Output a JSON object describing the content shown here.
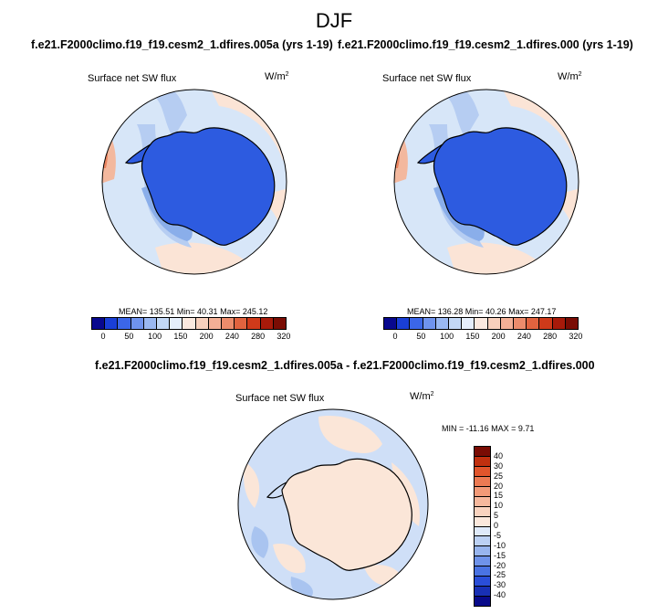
{
  "title": "DJF",
  "panel_left": {
    "run": "f.e21.F2000climo.f19_f19.cesm2_1.dfires.005a (yrs 1-19)",
    "field": "Surface net SW flux",
    "units_base": "W/m",
    "units_exp": "2",
    "stats": "MEAN= 135.51  Min=  40.31  Max= 245.12"
  },
  "panel_right": {
    "run": "f.e21.F2000climo.f19_f19.cesm2_1.dfires.000 (yrs 1-19)",
    "field": "Surface net SW flux",
    "units_base": "W/m",
    "units_exp": "2",
    "stats": "MEAN= 136.28  Min=  40.26  Max= 247.17"
  },
  "panel_diff": {
    "run": "f.e21.F2000climo.f19_f19.cesm2_1.dfires.005a - f.e21.F2000climo.f19_f19.cesm2_1.dfires.000",
    "field": "Surface net SW flux",
    "units_base": "W/m",
    "units_exp": "2",
    "stats": "MIN = -11.16  MAX =   9.71"
  },
  "colorbar_abs": {
    "labels": [
      "0",
      "50",
      "100",
      "150",
      "200",
      "240",
      "280",
      "320"
    ],
    "colors": [
      "#08088e",
      "#1a3fd6",
      "#3b66e8",
      "#6f93ee",
      "#9ab8f2",
      "#c3d8f6",
      "#e5eefb",
      "#fbe9df",
      "#f8d0bc",
      "#f3b096",
      "#ec8c6c",
      "#e1633f",
      "#cf3a1a",
      "#a81a0a",
      "#7a0c04"
    ]
  },
  "colorbar_diff": {
    "labels": [
      "40",
      "30",
      "25",
      "20",
      "15",
      "10",
      "5",
      "0",
      "-5",
      "-10",
      "-15",
      "-20",
      "-25",
      "-30",
      "-40"
    ],
    "colors": [
      "#7a0c04",
      "#c1300f",
      "#e1552c",
      "#ec7a53",
      "#f29a78",
      "#f6b89d",
      "#f9d3bf",
      "#fbe8dc",
      "#dfeafa",
      "#bcd1f4",
      "#98b5ee",
      "#6f93ea",
      "#4a73e3",
      "#2a4ed8",
      "#1830b5",
      "#080a8a"
    ]
  },
  "map_colors": {
    "ocean_light": "#d7e6f8",
    "ocean_mid": "#b6cdf2",
    "ocean_dark": "#8aaeea",
    "deep_blue": "#3f6fe0",
    "antarctica": "#2d5be0",
    "warm_light": "#fbe4d6",
    "warm_mid": "#f3b89e",
    "warm_dark": "#e8835f",
    "diff_pink": "#fbe6d8",
    "diff_blue": "#cfdff7",
    "diff_blue2": "#a9c4f0"
  }
}
